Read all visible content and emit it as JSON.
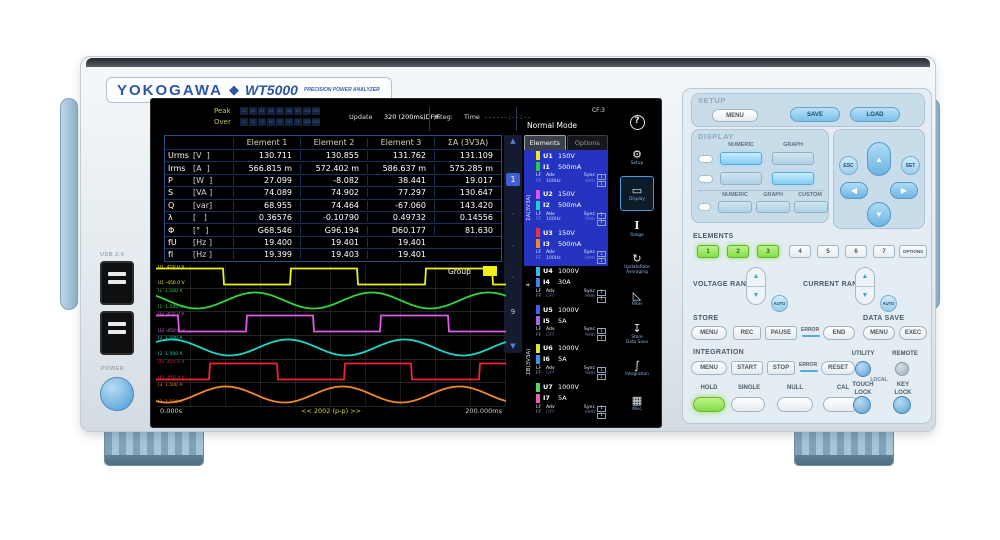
{
  "colors": {
    "brand_blue": "#2f55a8",
    "lit_blue": "#8fd0f4",
    "lit_green": "#8ce05a",
    "screen_group_blue": "#2433c0"
  },
  "brand": {
    "logo": "YOKOGAWA",
    "diamond": "◆",
    "model": "WT5000",
    "subtitle": "PRECISION POWER ANALYZER"
  },
  "chassis": {
    "usb_label": "USB 2.0",
    "power_label": "POWER"
  },
  "screen": {
    "status": {
      "peak_label": "Peak",
      "over_label": "Over",
      "peak_items": [
        "U1",
        "U2",
        "U3",
        "U4",
        "U5",
        "U6",
        "U7",
        "ChA",
        "ChC"
      ],
      "over_items": [
        "I1",
        "I2",
        "I3",
        "I4",
        "I5",
        "I6",
        "I7",
        "ChB",
        "ChD"
      ],
      "update_label": "Update",
      "update_value": "320 (200ms)DF/F",
      "integ_label": "Integ:",
      "time_label": "Time",
      "time_value": "------:--:--",
      "mode": "Normal Mode",
      "cf": "CF:3"
    },
    "table": {
      "headers": [
        "Element 1",
        "Element 2",
        "Element 3",
        "ΣA (3V3A)"
      ],
      "rows": [
        {
          "name": "Urms",
          "unit": "[V  ]",
          "values": [
            "130.711",
            "130.855",
            "131.762",
            "131.109"
          ]
        },
        {
          "name": "Irms",
          "unit": "[A  ]",
          "values": [
            "566.815 m",
            "572.402 m",
            "586.637 m",
            "575.285 m"
          ]
        },
        {
          "name": "P",
          "unit": "[W  ]",
          "values": [
            "27.099",
            "-8.082",
            "38.441",
            "19.017"
          ]
        },
        {
          "name": "S",
          "unit": "[VA ]",
          "values": [
            "74.089",
            "74.902",
            "77.297",
            "130.647"
          ]
        },
        {
          "name": "Q",
          "unit": "[var]",
          "values": [
            "68.955",
            "74.464",
            "-67.060",
            "143.420"
          ]
        },
        {
          "name": "λ",
          "unit": "[   ]",
          "values": [
            "0.36576",
            "-0.10790",
            "0.49732",
            "0.14556"
          ]
        },
        {
          "name": "Φ",
          "unit": "[°  ]",
          "values": [
            "G68.546",
            "G96.194",
            "D60.177",
            "81.630"
          ]
        },
        {
          "name": "fU",
          "unit": "[Hz ]",
          "values": [
            "19.400",
            "19.401",
            "19.401",
            ""
          ]
        },
        {
          "name": "fI",
          "unit": "[Hz ]",
          "values": [
            "19.399",
            "19.403",
            "19.401",
            ""
          ]
        }
      ]
    },
    "pager": {
      "up": "▲",
      "current": "1",
      "dots": [
        "·",
        "·",
        "·"
      ],
      "last": "9",
      "down": "▼"
    },
    "waveforms": {
      "group_label": "Group",
      "t_start": "0.000s",
      "t_center": "<< 2002 (p-p) >>",
      "t_end": "200.000ms",
      "channels": [
        {
          "label": "U1",
          "top": " 450.0 V",
          "bottom": "-450.0 V",
          "color": "#f0ef1a",
          "type": "square",
          "cycles": 2.6,
          "phase": 0.0
        },
        {
          "label": "I1",
          "top": " 1.500 A",
          "bottom": "-1.500 A",
          "color": "#30d83a",
          "type": "sine",
          "cycles": 3.0,
          "phase": 0.4
        },
        {
          "label": "U2",
          "top": " 450.0 V",
          "bottom": "-450.0 V",
          "color": "#e05ae8",
          "type": "square",
          "cycles": 2.6,
          "phase": 0.33
        },
        {
          "label": "I2",
          "top": " 1.500 A",
          "bottom": "-1.500 A",
          "color": "#1ad8c8",
          "type": "sine",
          "cycles": 3.0,
          "phase": 0.12
        },
        {
          "label": "U3",
          "top": " 450.0 V",
          "bottom": "-450.0 V",
          "color": "#f22238",
          "type": "square",
          "cycles": 2.6,
          "phase": 0.6
        },
        {
          "label": "I3",
          "top": " 1.500 A",
          "bottom": "-1.500 A",
          "color": "#f08828",
          "type": "sine",
          "cycles": 3.0,
          "phase": 0.65
        }
      ]
    },
    "sidebar": {
      "tabs": [
        {
          "label": "Elements"
        },
        {
          "label": "Options"
        }
      ],
      "groups": [
        {
          "label": "ΣA(3V3A)",
          "highlight": true,
          "elements": [
            {
              "u": "U1",
              "uv": "150V",
              "uc": "#f0e818",
              "i": "I1",
              "iv": "500mA",
              "ic": "#28c840",
              "lf": "LF",
              "ff": "FF",
              "adv": "Adv",
              "freq": "100Hz",
              "sync": "Sync",
              "hrm": "Hrm",
              "b1": "1",
              "b2": "1"
            },
            {
              "u": "U2",
              "uv": "150V",
              "uc": "#e055e0",
              "i": "I2",
              "iv": "500mA",
              "ic": "#18d4c4",
              "lf": "LF",
              "ff": "FF",
              "adv": "Adv",
              "freq": "100Hz",
              "sync": "Sync",
              "hrm": "Hrm",
              "b1": "1",
              "b2": "1"
            },
            {
              "u": "U3",
              "uv": "150V",
              "uc": "#f03040",
              "i": "I3",
              "iv": "500mA",
              "ic": "#f08828",
              "lf": "LF",
              "ff": "FF",
              "adv": "Adv",
              "freq": "100Hz",
              "sync": "Sync",
              "hrm": "Hrm",
              "b1": "1",
              "b2": "1"
            }
          ]
        },
        {
          "label": "4",
          "highlight": false,
          "elements": [
            {
              "u": "U4",
              "uv": "1000V",
              "uc": "#30c0f0",
              "i": "I4",
              "iv": "30A",
              "ic": "#3b82e8",
              "lf": "LF",
              "ff": "FF",
              "adv": "Adv",
              "freq": "OFF",
              "sync": "Sync",
              "hrm": "Hrm",
              "b1": "1",
              "b2": "1"
            }
          ]
        },
        {
          "label": "ΣB(3V3A)",
          "highlight": false,
          "elements": [
            {
              "u": "U5",
              "uv": "1000V",
              "uc": "#3b62e8",
              "i": "I5",
              "iv": "5A",
              "ic": "#9a6ae8",
              "lf": "LF",
              "ff": "FF",
              "adv": "Adv",
              "freq": "OFF",
              "sync": "Sync",
              "hrm": "Hrm",
              "b1": "1",
              "b2": "1"
            },
            {
              "u": "U6",
              "uv": "1000V",
              "uc": "#d8e830",
              "i": "I6",
              "iv": "5A",
              "ic": "#3898e8",
              "lf": "LF",
              "ff": "FF",
              "adv": "Adv",
              "freq": "OFF",
              "sync": "Sync",
              "hrm": "Hrm",
              "b1": "1",
              "b2": "1"
            },
            {
              "u": "U7",
              "uv": "1000V",
              "uc": "#50d860",
              "i": "I7",
              "iv": "5A",
              "ic": "#f060b0",
              "lf": "LF",
              "ff": "FF",
              "adv": "Adv",
              "freq": "OFF",
              "sync": "Sync",
              "hrm": "Hrm",
              "b1": "1",
              "b2": "1"
            }
          ]
        }
      ]
    },
    "icons": [
      {
        "name": "help",
        "glyph": "?",
        "label": ""
      },
      {
        "name": "setup",
        "glyph": "⚙",
        "label": "Setup"
      },
      {
        "name": "display",
        "glyph": "▭",
        "label": "Display",
        "active": true
      },
      {
        "name": "range",
        "glyph": "I",
        "label": "Range",
        "serif": true
      },
      {
        "name": "update-rate",
        "glyph": "↻",
        "label": "UpdateRate",
        "label2": "Averaging"
      },
      {
        "name": "filter",
        "glyph": "◺",
        "label": "Filter"
      },
      {
        "name": "store",
        "glyph": "↧",
        "label": "Store",
        "label2": "Data Save"
      },
      {
        "name": "integration",
        "glyph": "∫",
        "label": "Integration"
      },
      {
        "name": "misc",
        "glyph": "▦",
        "label": "Misc"
      }
    ]
  },
  "panel": {
    "setup": {
      "title": "SETUP",
      "menu": "MENU",
      "save": "SAVE",
      "load": "LOAD"
    },
    "display": {
      "title": "DISPLAY",
      "numeric1": "NUMERIC",
      "graph1": "GRAPH",
      "numeric2": "NUMERIC",
      "graph2": "GRAPH",
      "custom": "CUSTOM"
    },
    "nav": {
      "esc": "ESC",
      "set": "SET",
      "up": "▲",
      "down": "▼",
      "left": "◀",
      "right": "▶"
    },
    "elements": {
      "title": "ELEMENTS",
      "buttons": [
        "1",
        "2",
        "3",
        "4",
        "5",
        "6",
        "7"
      ],
      "lit_count": 3,
      "options": "OPTIONS"
    },
    "ranges": {
      "voltage": "VOLTAGE RANGE",
      "current": "CURRENT RANGE",
      "auto": "AUTO",
      "up": "▲",
      "down": "▼"
    },
    "store": {
      "title": "STORE",
      "menu": "MENU",
      "rec": "REC",
      "pause": "PAUSE",
      "error": "ERROR",
      "end": "END"
    },
    "data_save": {
      "title": "DATA SAVE",
      "menu": "MENU",
      "exec": "EXEC"
    },
    "integration": {
      "title": "INTEGRATION",
      "menu": "MENU",
      "start": "START",
      "stop": "STOP",
      "error": "ERROR",
      "reset": "RESET"
    },
    "utility": {
      "utility": "UTILITY",
      "remote": "REMOTE",
      "local": "LOCAL"
    },
    "keys": {
      "hold": "HOLD",
      "single": "SINGLE",
      "null": "NULL",
      "cal": "CAL",
      "touch1": "TOUCH",
      "touch2": "LOCK",
      "key1": "KEY",
      "key2": "LOCK"
    }
  }
}
